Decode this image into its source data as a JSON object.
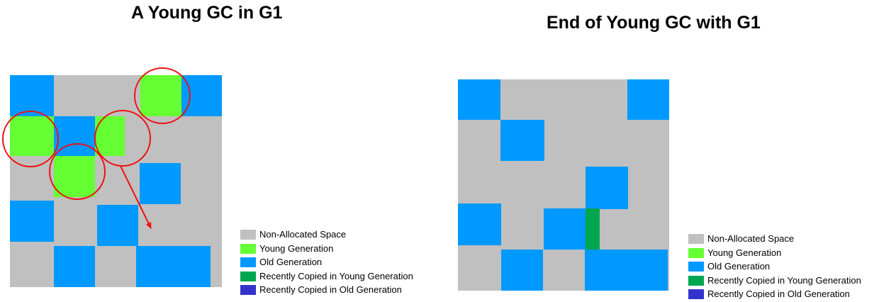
{
  "diagrams": [
    {
      "id": "left",
      "title": "A Young GC in G1",
      "legend": [
        {
          "label": "Non-Allocated Space",
          "color": "#c0c0c0"
        },
        {
          "label": "Young Generation",
          "color": "#66ff33"
        },
        {
          "label": "Old Generation",
          "color": "#0099ff"
        },
        {
          "label": "Recently Copied in Young Generation",
          "color": "#00a650"
        },
        {
          "label": "Recently Copied in Old Generation",
          "color": "#3333cc"
        }
      ]
    },
    {
      "id": "right",
      "title": "End of Young GC with G1",
      "legend": [
        {
          "label": "Non-Allocated Space",
          "color": "#c0c0c0"
        },
        {
          "label": "Young Generation",
          "color": "#66ff33"
        },
        {
          "label": "Old Generation",
          "color": "#0099ff"
        },
        {
          "label": "Recently Copied in Young Generation",
          "color": "#00a650"
        },
        {
          "label": "Recently Copied in Old Generation",
          "color": "#3333cc"
        }
      ]
    }
  ],
  "colors": {
    "non_allocated": "#c0c0c0",
    "young": "#66ff33",
    "old": "#0099ff",
    "copied_young": "#00a650",
    "copied_old": "#3333cc",
    "highlight_circle": "#ee1111",
    "arrow": "#ee1111"
  }
}
